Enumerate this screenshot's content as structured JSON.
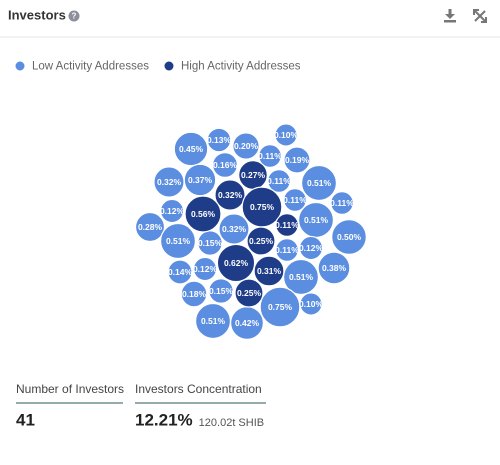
{
  "chart_data": {
    "type": "bubble",
    "title": "Investors",
    "series": [
      {
        "name": "Low Activity Addresses",
        "color": "#5b8ee0",
        "values": [
          0.45,
          0.13,
          0.2,
          0.1,
          0.16,
          0.11,
          0.19,
          0.32,
          0.37,
          0.11,
          0.51,
          0.12,
          0.11,
          0.11,
          0.28,
          0.32,
          0.51,
          0.51,
          0.15,
          0.5,
          0.11,
          0.12,
          0.14,
          0.12,
          0.38,
          0.51,
          0.18,
          0.15,
          0.75,
          0.1,
          0.51,
          0.42
        ],
        "value_labels": [
          "0.45%",
          "0.13%",
          "0.20%",
          "0.10%",
          "0.16%",
          "0.11%",
          "0.19%",
          "0.32%",
          "0.37%",
          "0.11%",
          "0.51%",
          "0.12%",
          "0.11%",
          "0.11%",
          "0.28%",
          "0.32%",
          "0.51%",
          "0.51%",
          "0.15%",
          "0.50%",
          "0.11%",
          "0.12%",
          "0.14%",
          "0.12%",
          "0.38%",
          "0.51%",
          "0.18%",
          "0.15%",
          "0.75%",
          "0.10%",
          "0.51%",
          "0.42%"
        ]
      },
      {
        "name": "High Activity Addresses",
        "color": "#1e3c87",
        "values": [
          0.27,
          0.32,
          0.75,
          0.56,
          0.11,
          0.25,
          0.62,
          0.31,
          0.25
        ],
        "value_labels": [
          "0.27%",
          "0.32%",
          "0.75%",
          "0.56%",
          "0.11%",
          "0.25%",
          "0.62%",
          "0.31%",
          "0.25%"
        ]
      }
    ]
  },
  "stats": [
    {
      "label": "Number of Investors",
      "value": "41"
    },
    {
      "label": "Investors Concentration",
      "value": "12.21%",
      "sub": "120.02t SHIB"
    }
  ]
}
